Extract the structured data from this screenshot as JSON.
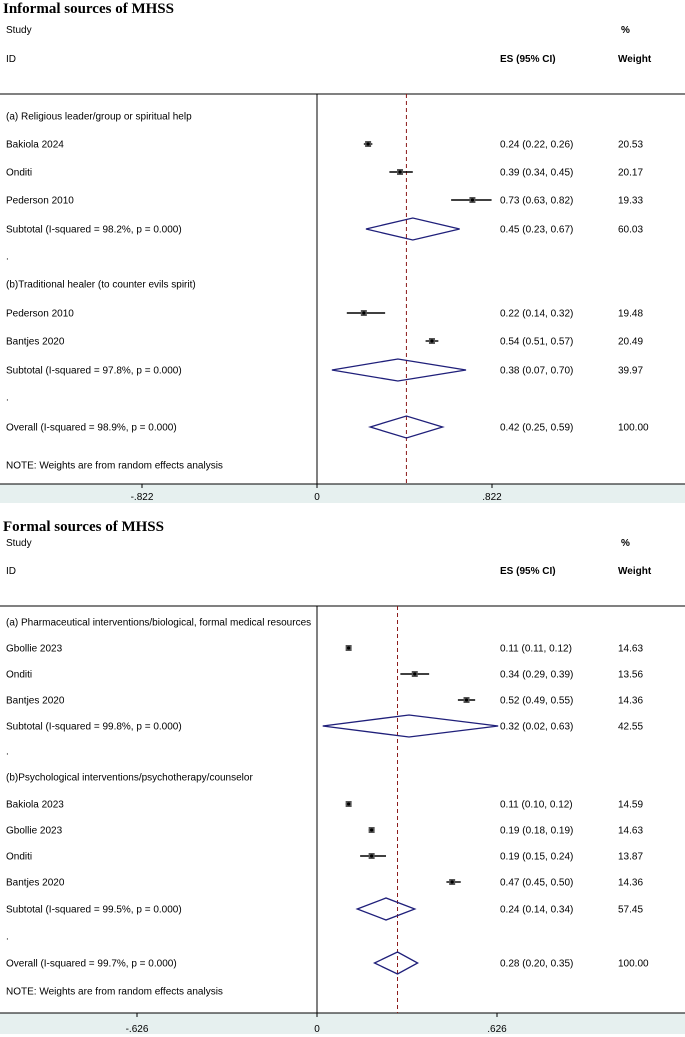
{
  "chart_data": [
    {
      "type": "forest",
      "title": "Informal sources of MHSS",
      "header": {
        "study": "Study",
        "id": "ID",
        "es": "ES (95% CI)",
        "pct": "%",
        "weight": "Weight"
      },
      "xlim": [
        -0.822,
        1.644
      ],
      "xticks": [
        {
          "value": -0.822,
          "label": "-.822"
        },
        {
          "value": 0,
          "label": "0"
        },
        {
          "value": 0.822,
          "label": ".822"
        }
      ],
      "overall_line": 0.42,
      "rows": [
        {
          "kind": "group",
          "label": "(a) Religious leader/group or spiritual help"
        },
        {
          "kind": "study",
          "label": "Bakiola 2024",
          "es": 0.24,
          "lo": 0.22,
          "hi": 0.26,
          "ci": "0.24 (0.22, 0.26)",
          "weight": "20.53"
        },
        {
          "kind": "study",
          "label": "Onditi",
          "es": 0.39,
          "lo": 0.34,
          "hi": 0.45,
          "ci": "0.39 (0.34, 0.45)",
          "weight": "20.17"
        },
        {
          "kind": "study",
          "label": "Pederson 2010",
          "es": 0.73,
          "lo": 0.63,
          "hi": 0.82,
          "ci": "0.73 (0.63, 0.82)",
          "weight": "19.33"
        },
        {
          "kind": "subtotal",
          "label": "Subtotal  (I-squared = 98.2%, p = 0.000)",
          "es": 0.45,
          "lo": 0.23,
          "hi": 0.67,
          "ci": "0.45 (0.23, 0.67)",
          "weight": "60.03"
        },
        {
          "kind": "dot",
          "label": "."
        },
        {
          "kind": "group",
          "label": "(b)Traditional healer (to counter evils spirit)"
        },
        {
          "kind": "study",
          "label": "Pederson 2010",
          "es": 0.22,
          "lo": 0.14,
          "hi": 0.32,
          "ci": "0.22 (0.14, 0.32)",
          "weight": "19.48"
        },
        {
          "kind": "study",
          "label": "Bantjes 2020",
          "es": 0.54,
          "lo": 0.51,
          "hi": 0.57,
          "ci": "0.54 (0.51, 0.57)",
          "weight": "20.49"
        },
        {
          "kind": "subtotal",
          "label": "Subtotal  (I-squared = 97.8%, p = 0.000)",
          "es": 0.38,
          "lo": 0.07,
          "hi": 0.7,
          "ci": "0.38 (0.07, 0.70)",
          "weight": "39.97"
        },
        {
          "kind": "dot",
          "label": "."
        },
        {
          "kind": "overall",
          "label": "Overall  (I-squared = 98.9%, p = 0.000)",
          "es": 0.42,
          "lo": 0.25,
          "hi": 0.59,
          "ci": "0.42 (0.25, 0.59)",
          "weight": "100.00"
        },
        {
          "kind": "note",
          "label": "NOTE: Weights are from random effects analysis"
        }
      ]
    },
    {
      "type": "forest",
      "title": "Formal sources of MHSS",
      "header": {
        "study": "Study",
        "id": "ID",
        "es": "ES (95% CI)",
        "pct": "%",
        "weight": "Weight"
      },
      "xlim": [
        -0.626,
        1.252
      ],
      "xticks": [
        {
          "value": -0.626,
          "label": "-.626"
        },
        {
          "value": 0,
          "label": "0"
        },
        {
          "value": 0.626,
          "label": ".626"
        }
      ],
      "overall_line": 0.28,
      "rows": [
        {
          "kind": "group",
          "label": "(a) Pharmaceutical interventions/biological, formal medical resources"
        },
        {
          "kind": "study",
          "label": "Gbollie 2023",
          "es": 0.11,
          "lo": 0.11,
          "hi": 0.12,
          "ci": "0.11 (0.11, 0.12)",
          "weight": "14.63"
        },
        {
          "kind": "study",
          "label": "Onditi",
          "es": 0.34,
          "lo": 0.29,
          "hi": 0.39,
          "ci": "0.34 (0.29, 0.39)",
          "weight": "13.56"
        },
        {
          "kind": "study",
          "label": "Bantjes 2020",
          "es": 0.52,
          "lo": 0.49,
          "hi": 0.55,
          "ci": "0.52 (0.49, 0.55)",
          "weight": "14.36"
        },
        {
          "kind": "subtotal",
          "label": "Subtotal  (I-squared = 99.8%, p = 0.000)",
          "es": 0.32,
          "lo": 0.02,
          "hi": 0.63,
          "ci": "0.32 (0.02, 0.63)",
          "weight": "42.55"
        },
        {
          "kind": "dot",
          "label": "."
        },
        {
          "kind": "group",
          "label": "(b)Psychological interventions/psychotherapy/counselor"
        },
        {
          "kind": "study",
          "label": "Bakiola 2023",
          "es": 0.11,
          "lo": 0.1,
          "hi": 0.12,
          "ci": "0.11 (0.10, 0.12)",
          "weight": "14.59"
        },
        {
          "kind": "study",
          "label": "Gbollie 2023",
          "es": 0.19,
          "lo": 0.18,
          "hi": 0.19,
          "ci": "0.19 (0.18, 0.19)",
          "weight": "14.63"
        },
        {
          "kind": "study",
          "label": "Onditi",
          "es": 0.19,
          "lo": 0.15,
          "hi": 0.24,
          "ci": "0.19 (0.15, 0.24)",
          "weight": "13.87"
        },
        {
          "kind": "study",
          "label": "Bantjes 2020",
          "es": 0.47,
          "lo": 0.45,
          "hi": 0.5,
          "ci": "0.47 (0.45, 0.50)",
          "weight": "14.36"
        },
        {
          "kind": "subtotal",
          "label": "Subtotal  (I-squared = 99.5%, p = 0.000)",
          "es": 0.24,
          "lo": 0.14,
          "hi": 0.34,
          "ci": "0.24 (0.14, 0.34)",
          "weight": "57.45"
        },
        {
          "kind": "dot",
          "label": "."
        },
        {
          "kind": "overall",
          "label": "Overall  (I-squared = 99.7%, p = 0.000)",
          "es": 0.28,
          "lo": 0.2,
          "hi": 0.35,
          "ci": "0.28 (0.20, 0.35)",
          "weight": "100.00"
        },
        {
          "kind": "note",
          "label": "NOTE: Weights are from random effects analysis"
        }
      ]
    }
  ],
  "colors": {
    "diamond": "#1f1f7a",
    "refline": "#8b1a1a",
    "axisband": "#e6f0ef",
    "ink": "#000000"
  }
}
